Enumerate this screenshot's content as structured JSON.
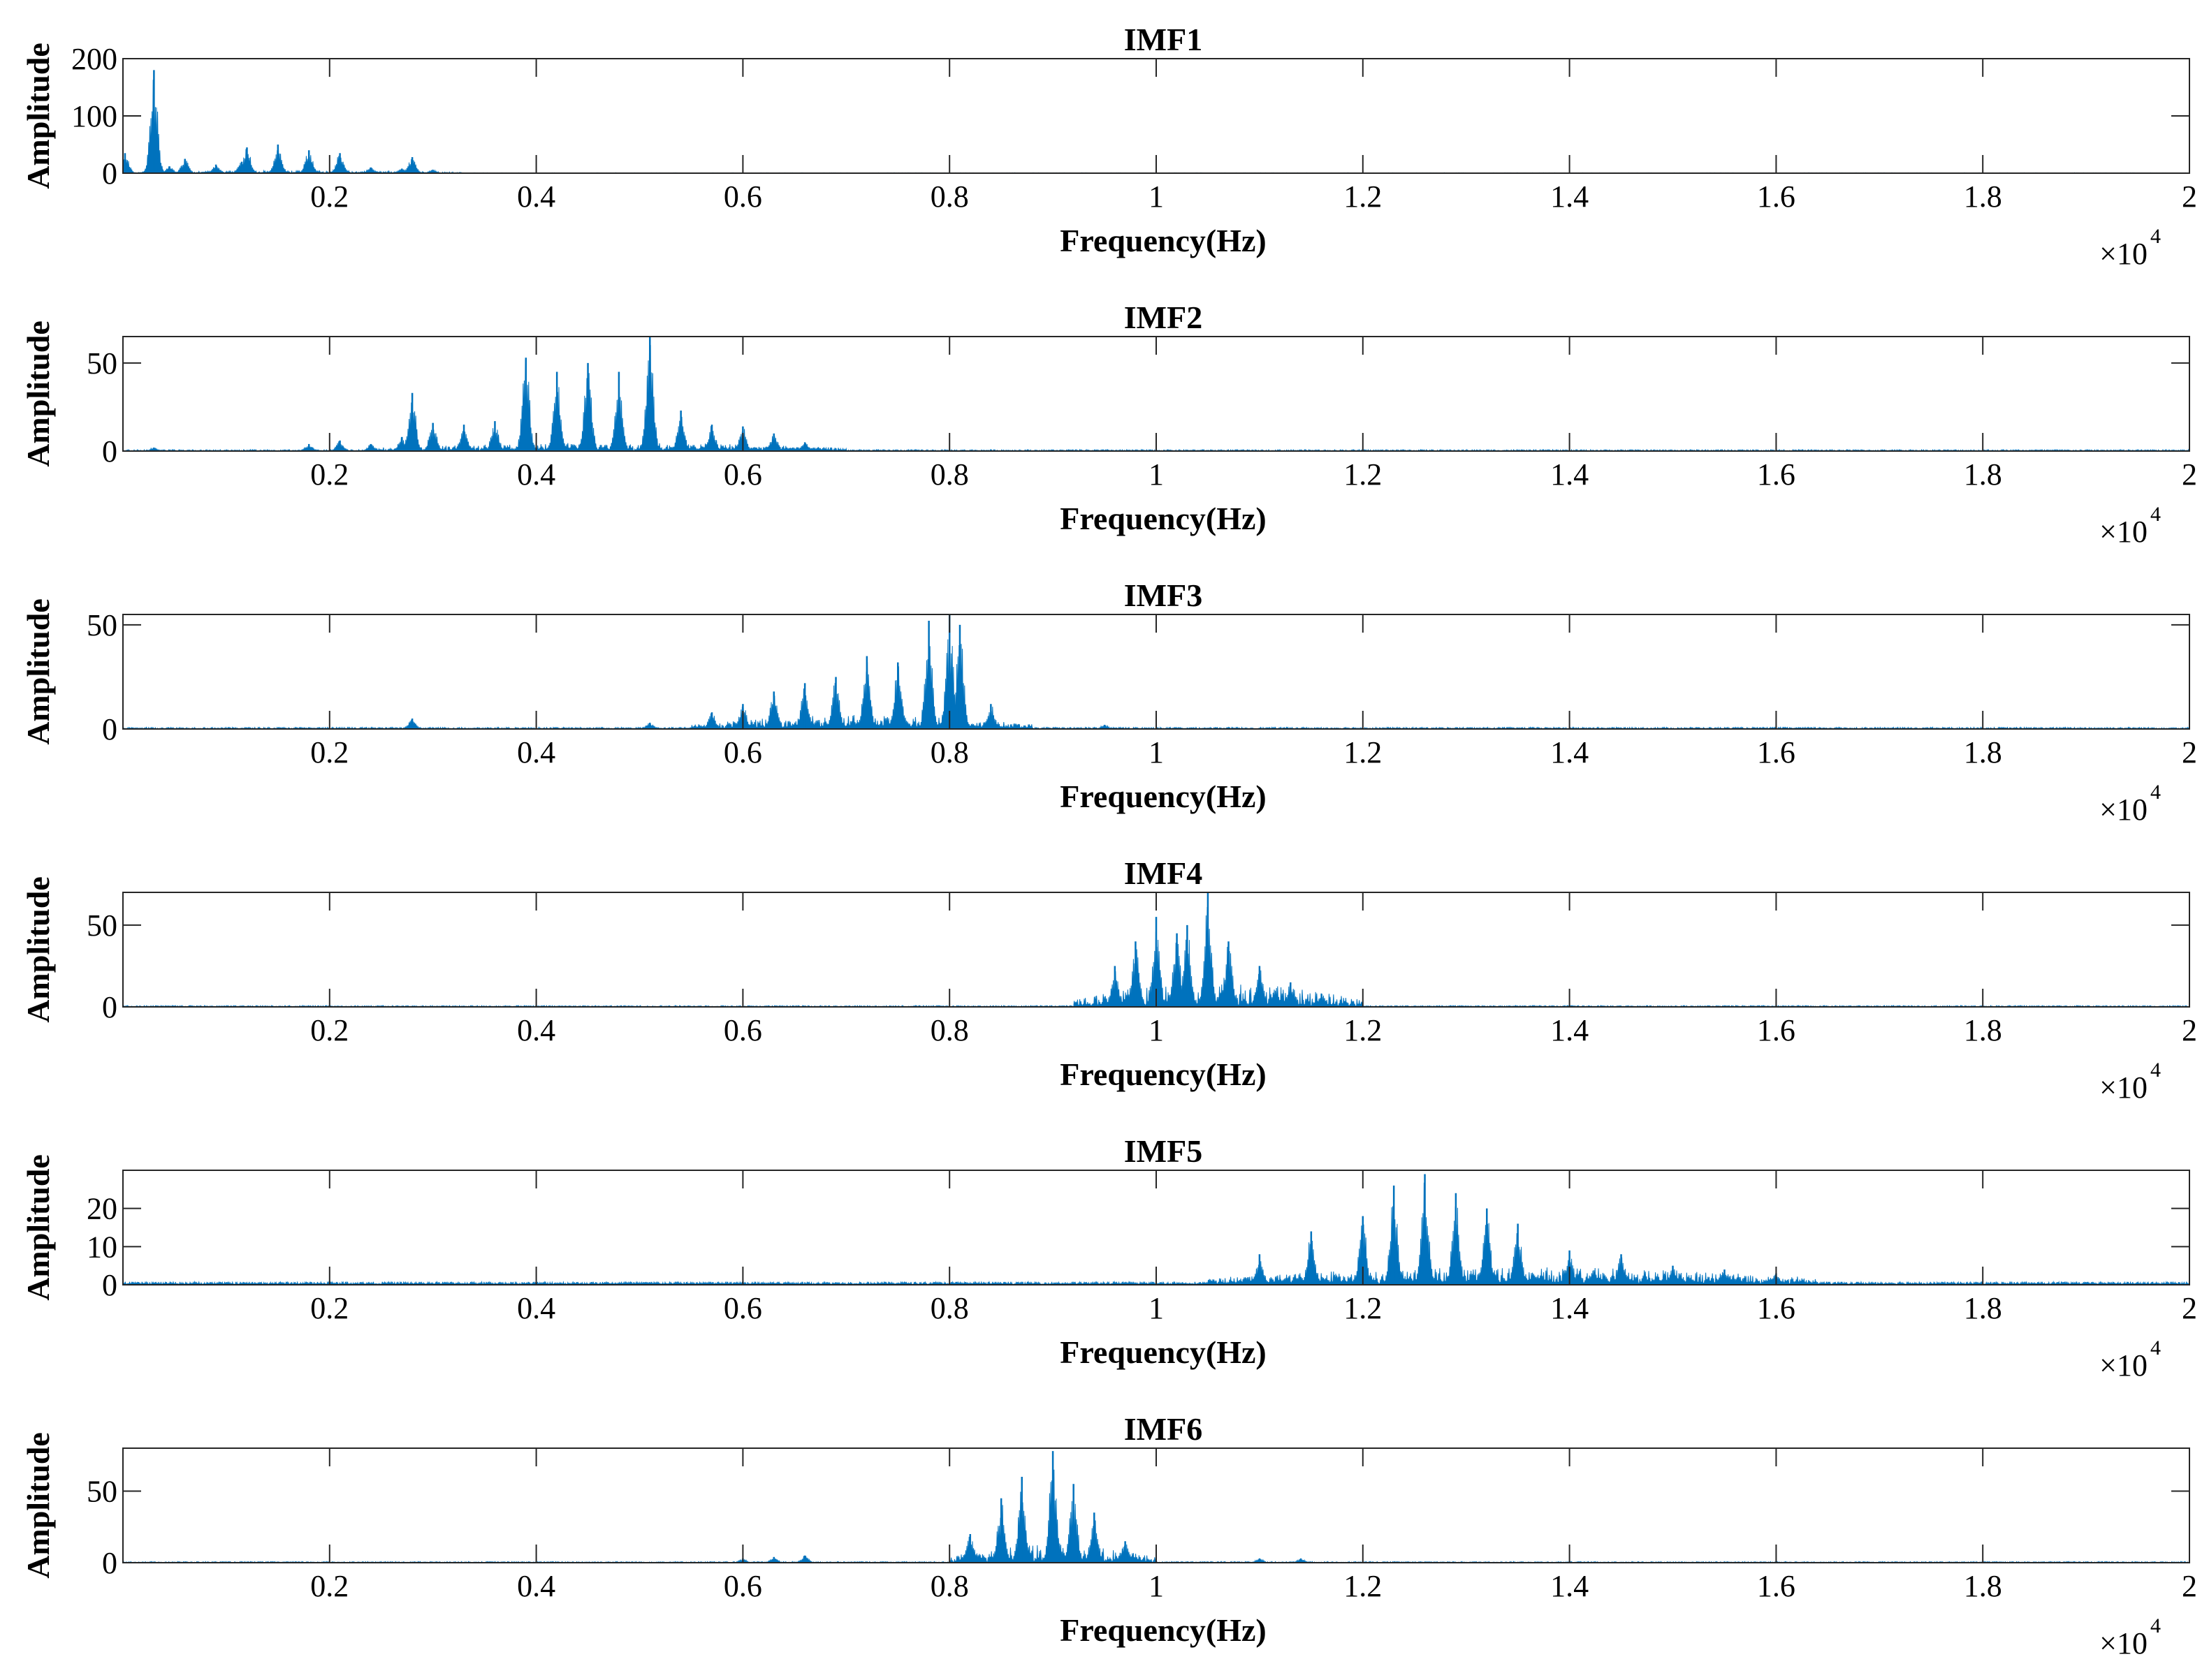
{
  "chart_data": [
    {
      "type": "area",
      "title": "IMF1",
      "xlabel": "Frequency(Hz)",
      "ylabel": "Amplitude",
      "x_multiplier": "×10",
      "x_multiplier_exp": "4",
      "xlim": [
        0,
        2
      ],
      "ylim": [
        0,
        200
      ],
      "xticks": [
        0.2,
        0.4,
        0.6,
        0.8,
        1,
        1.2,
        1.4,
        1.6,
        1.8,
        2
      ],
      "xtick_labels": [
        "0.2",
        "0.4",
        "0.6",
        "0.8",
        "1",
        "1.2",
        "1.4",
        "1.6",
        "1.8",
        "2"
      ],
      "yticks": [
        0,
        100,
        200
      ],
      "ytick_labels": [
        "0",
        "100",
        "200"
      ],
      "color": "#0072BD",
      "band": [
        0,
        0.33
      ],
      "noise": 4,
      "peaks": [
        [
          0.002,
          35
        ],
        [
          0.03,
          180
        ],
        [
          0.045,
          12
        ],
        [
          0.06,
          25
        ],
        [
          0.09,
          15
        ],
        [
          0.115,
          20
        ],
        [
          0.12,
          45
        ],
        [
          0.15,
          50
        ],
        [
          0.18,
          40
        ],
        [
          0.21,
          35
        ],
        [
          0.24,
          10
        ],
        [
          0.27,
          8
        ],
        [
          0.28,
          28
        ],
        [
          0.3,
          6
        ]
      ]
    },
    {
      "type": "area",
      "title": "IMF2",
      "xlabel": "Frequency(Hz)",
      "ylabel": "Amplitude",
      "x_multiplier": "×10",
      "x_multiplier_exp": "4",
      "xlim": [
        0,
        2
      ],
      "ylim": [
        0,
        65
      ],
      "xticks": [
        0.2,
        0.4,
        0.6,
        0.8,
        1,
        1.2,
        1.4,
        1.6,
        1.8,
        2
      ],
      "xtick_labels": [
        "0.2",
        "0.4",
        "0.6",
        "0.8",
        "1",
        "1.2",
        "1.4",
        "1.6",
        "1.8",
        "2"
      ],
      "yticks": [
        0,
        50
      ],
      "ytick_labels": [
        "0",
        "50"
      ],
      "color": "#0072BD",
      "band": [
        0.24,
        0.7
      ],
      "noise": 4,
      "peaks": [
        [
          0.03,
          2
        ],
        [
          0.18,
          4
        ],
        [
          0.21,
          6
        ],
        [
          0.24,
          4
        ],
        [
          0.27,
          8
        ],
        [
          0.28,
          33
        ],
        [
          0.3,
          16
        ],
        [
          0.33,
          15
        ],
        [
          0.36,
          17
        ],
        [
          0.39,
          53
        ],
        [
          0.42,
          45
        ],
        [
          0.45,
          50
        ],
        [
          0.48,
          45
        ],
        [
          0.51,
          65
        ],
        [
          0.54,
          23
        ],
        [
          0.57,
          15
        ],
        [
          0.6,
          14
        ],
        [
          0.63,
          10
        ],
        [
          0.66,
          5
        ]
      ]
    },
    {
      "type": "area",
      "title": "IMF3",
      "xlabel": "Frequency(Hz)",
      "ylabel": "Amplitude",
      "x_multiplier": "×10",
      "x_multiplier_exp": "4",
      "xlim": [
        0,
        2
      ],
      "ylim": [
        0,
        55
      ],
      "xticks": [
        0.2,
        0.4,
        0.6,
        0.8,
        1,
        1.2,
        1.4,
        1.6,
        1.8,
        2
      ],
      "xtick_labels": [
        "0.2",
        "0.4",
        "0.6",
        "0.8",
        "1",
        "1.2",
        "1.4",
        "1.6",
        "1.8",
        "2"
      ],
      "yticks": [
        0,
        50
      ],
      "ytick_labels": [
        "0",
        "50"
      ],
      "color": "#0072BD",
      "band": [
        0.55,
        0.88
      ],
      "noise": 6,
      "peaks": [
        [
          0.28,
          5
        ],
        [
          0.51,
          3
        ],
        [
          0.57,
          8
        ],
        [
          0.6,
          12
        ],
        [
          0.63,
          18
        ],
        [
          0.66,
          22
        ],
        [
          0.69,
          25
        ],
        [
          0.72,
          35
        ],
        [
          0.75,
          32
        ],
        [
          0.78,
          52
        ],
        [
          0.8,
          55
        ],
        [
          0.81,
          50
        ],
        [
          0.84,
          12
        ],
        [
          0.95,
          2
        ]
      ]
    },
    {
      "type": "area",
      "title": "IMF4",
      "xlabel": "Frequency(Hz)",
      "ylabel": "Amplitude",
      "x_multiplier": "×10",
      "x_multiplier_exp": "4",
      "xlim": [
        0,
        2
      ],
      "ylim": [
        0,
        70
      ],
      "xticks": [
        0.2,
        0.4,
        0.6,
        0.8,
        1,
        1.2,
        1.4,
        1.6,
        1.8,
        2
      ],
      "xtick_labels": [
        "0.2",
        "0.4",
        "0.6",
        "0.8",
        "1",
        "1.2",
        "1.4",
        "1.6",
        "1.8",
        "2"
      ],
      "yticks": [
        0,
        50
      ],
      "ytick_labels": [
        "0",
        "50"
      ],
      "color": "#0072BD",
      "band": [
        0.92,
        1.2
      ],
      "noise": 14,
      "peaks": [
        [
          0.96,
          25
        ],
        [
          0.98,
          40
        ],
        [
          1.0,
          55
        ],
        [
          1.02,
          45
        ],
        [
          1.03,
          50
        ],
        [
          1.05,
          70
        ],
        [
          1.07,
          40
        ],
        [
          1.1,
          25
        ],
        [
          1.13,
          15
        ],
        [
          1.16,
          8
        ]
      ]
    },
    {
      "type": "area",
      "title": "IMF5",
      "xlabel": "Frequency(Hz)",
      "ylabel": "Amplitude",
      "x_multiplier": "×10",
      "x_multiplier_exp": "4",
      "xlim": [
        0,
        2
      ],
      "ylim": [
        0,
        30
      ],
      "xticks": [
        0.2,
        0.4,
        0.6,
        0.8,
        1,
        1.2,
        1.4,
        1.6,
        1.8,
        2
      ],
      "xtick_labels": [
        "0.2",
        "0.4",
        "0.6",
        "0.8",
        "1",
        "1.2",
        "1.4",
        "1.6",
        "1.8",
        "2"
      ],
      "yticks": [
        0,
        10,
        20
      ],
      "ytick_labels": [
        "0",
        "10",
        "20"
      ],
      "color": "#0072BD",
      "band": [
        1.05,
        1.64
      ],
      "noise": 4,
      "peaks": [
        [
          1.1,
          8
        ],
        [
          1.15,
          14
        ],
        [
          1.2,
          18
        ],
        [
          1.23,
          26
        ],
        [
          1.26,
          29
        ],
        [
          1.29,
          24
        ],
        [
          1.32,
          20
        ],
        [
          1.35,
          16
        ],
        [
          1.4,
          9
        ],
        [
          1.45,
          8
        ],
        [
          1.5,
          5
        ],
        [
          1.55,
          4
        ],
        [
          1.6,
          3
        ]
      ]
    },
    {
      "type": "area",
      "title": "IMF6",
      "xlabel": "Frequency(Hz)",
      "ylabel": "Amplitude",
      "x_multiplier": "×10",
      "x_multiplier_exp": "4",
      "xlim": [
        0,
        2
      ],
      "ylim": [
        0,
        80
      ],
      "xticks": [
        0.2,
        0.4,
        0.6,
        0.8,
        1,
        1.2,
        1.4,
        1.6,
        1.8,
        2
      ],
      "xtick_labels": [
        "0.2",
        "0.4",
        "0.6",
        "0.8",
        "1",
        "1.2",
        "1.4",
        "1.6",
        "1.8",
        "2"
      ],
      "yticks": [
        0,
        50
      ],
      "ytick_labels": [
        "0",
        "50"
      ],
      "color": "#0072BD",
      "band": [
        0.8,
        1.0
      ],
      "noise": 12,
      "peaks": [
        [
          0.6,
          3
        ],
        [
          0.63,
          4
        ],
        [
          0.66,
          5
        ],
        [
          0.82,
          20
        ],
        [
          0.85,
          45
        ],
        [
          0.87,
          60
        ],
        [
          0.9,
          78
        ],
        [
          0.92,
          55
        ],
        [
          0.94,
          35
        ],
        [
          0.97,
          15
        ],
        [
          1.1,
          3
        ],
        [
          1.14,
          3
        ]
      ]
    }
  ]
}
